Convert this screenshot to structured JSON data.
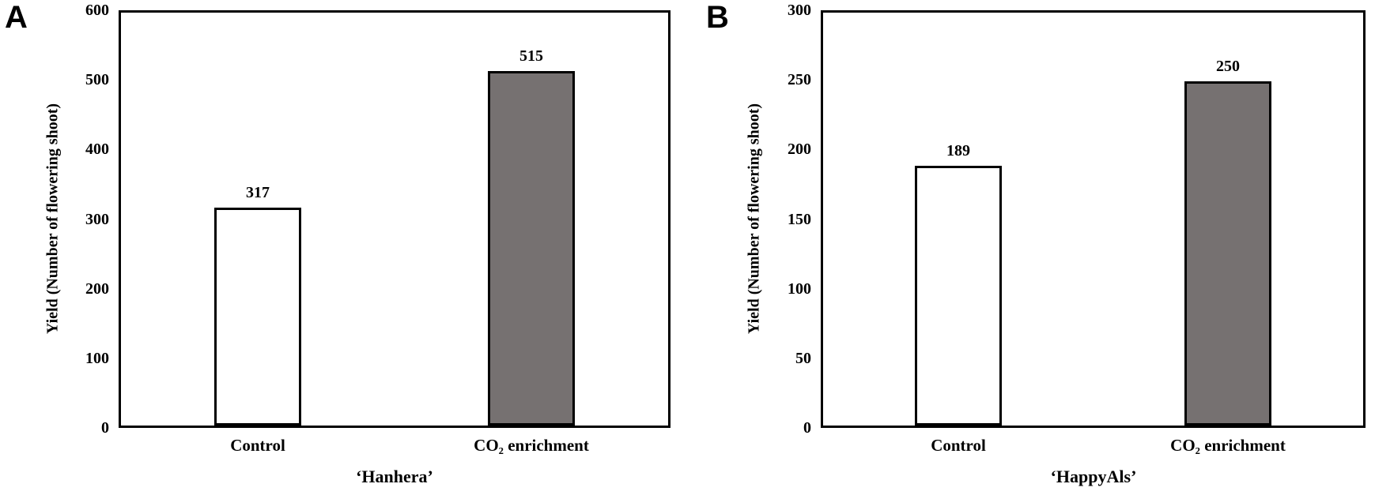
{
  "figure": {
    "background_color": "#ffffff",
    "axis_color": "#000000",
    "text_color": "#000000",
    "control_bar_fill": "#ffffff",
    "co2_bar_fill": "#767171"
  },
  "chart_data": [
    {
      "type": "bar",
      "panel_label": "A",
      "title": "‘Hanhera’",
      "xlabel": "",
      "ylabel": "Yield (Number of flowering shoot)",
      "categories": [
        "Control",
        "CO₂ enrichment"
      ],
      "values": [
        317,
        515
      ],
      "value_labels": [
        "317",
        "515"
      ],
      "ylim": [
        0,
        600
      ],
      "ytick_step": 100,
      "yticks": [
        0,
        100,
        200,
        300,
        400,
        500,
        600
      ],
      "bar_colors": [
        "#ffffff",
        "#767171"
      ],
      "bar_border_color": "#000000",
      "grid": false,
      "legend": "none"
    },
    {
      "type": "bar",
      "panel_label": "B",
      "title": "‘HappyAls’",
      "xlabel": "",
      "ylabel": "Yield (Number of flowering shoot)",
      "categories": [
        "Control",
        "CO₂ enrichment"
      ],
      "values": [
        189,
        250
      ],
      "value_labels": [
        "189",
        "250"
      ],
      "ylim": [
        0,
        300
      ],
      "ytick_step": 50,
      "yticks": [
        0,
        50,
        100,
        150,
        200,
        250,
        300
      ],
      "bar_colors": [
        "#ffffff",
        "#767171"
      ],
      "bar_border_color": "#000000",
      "grid": false,
      "legend": "none"
    }
  ]
}
